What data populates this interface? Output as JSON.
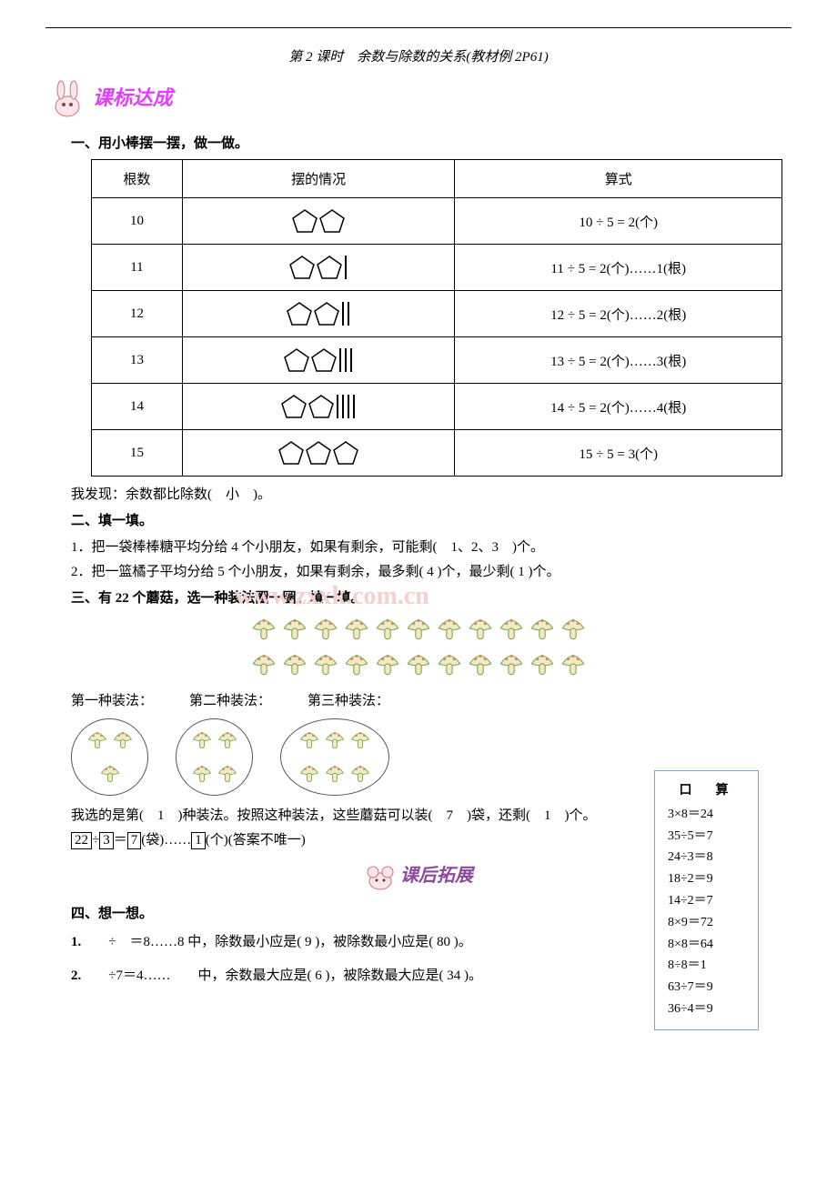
{
  "title": "第 2 课时　余数与除数的关系(教材例 2P61)",
  "banner1_text": "课标达成",
  "section1": {
    "heading": "一、用小棒摆一摆，做一做。",
    "headers": [
      "根数",
      "摆的情况",
      "算式"
    ],
    "rows": [
      {
        "n": "10",
        "sticks": 0,
        "pent": 2,
        "eq": "10 ÷ 5 = 2(个)"
      },
      {
        "n": "11",
        "sticks": 1,
        "pent": 2,
        "eq": "11 ÷ 5 = 2(个)……1(根)"
      },
      {
        "n": "12",
        "sticks": 2,
        "pent": 2,
        "eq": "12 ÷ 5 = 2(个)……2(根)"
      },
      {
        "n": "13",
        "sticks": 3,
        "pent": 2,
        "eq": "13 ÷ 5 = 2(个)……3(根)"
      },
      {
        "n": "14",
        "sticks": 4,
        "pent": 2,
        "eq": "14 ÷ 5 = 2(个)……4(根)"
      },
      {
        "n": "15",
        "sticks": 0,
        "pent": 3,
        "eq": "15 ÷ 5 = 3(个)"
      }
    ],
    "conclusion_pre": "我发现：余数都比除数(",
    "conclusion_ans": "　小　",
    "conclusion_post": ")。"
  },
  "section2": {
    "heading": "二、填一填。",
    "q1_pre": "1．把一袋棒棒糖平均分给 4 个小朋友，如果有剩余，可能剩(",
    "q1_ans": "　1、2、3　",
    "q1_post": ")个。",
    "q2_pre": "2．把一篮橘子平均分给 5 个小朋友，如果有剩余，最多剩(",
    "q2_ans1": " 4 ",
    "q2_mid": ")个，最少剩(",
    "q2_ans2": " 1 ",
    "q2_post": ")个。"
  },
  "section3": {
    "heading": "三、有 22 个蘑菇，选一种装法圈一圈，填一填。",
    "watermark": "www.zxxk.com.cn",
    "labels": [
      "第一种装法：",
      "第二种装法：",
      "第三种装法："
    ],
    "packs": [
      3,
      4,
      6
    ],
    "choice_pre": "我选的是第(",
    "choice_a1": "　1　",
    "choice_mid1": ")种装法。按照这种装法，这些蘑菇可以装(",
    "choice_a2": "　7　",
    "choice_mid2": ")袋，还剩(",
    "choice_a3": "　1　",
    "choice_post": ")个。",
    "eq_boxes": [
      "22",
      "3",
      "7",
      "1"
    ],
    "eq_text1": "÷",
    "eq_text2": "＝",
    "eq_text3": "(袋)……",
    "eq_text4": "(个)(答案不唯一)"
  },
  "banner2_text": "课后拓展",
  "section4": {
    "heading": "四、想一想。",
    "q1_pre": "1.　　÷　＝8……8 中，除数最小应是(",
    "q1_a1": " 9 ",
    "q1_mid": ")，被除数最小应是(",
    "q1_a2": " 80 ",
    "q1_post": ")。",
    "q2_pre": "2.　　÷7＝4……　　中，余数最大应是(",
    "q2_a1": " 6 ",
    "q2_mid": ")，被除数最大应是(",
    "q2_a2": " 34 ",
    "q2_post": ")。"
  },
  "sidebox": {
    "title": "口　算",
    "items": [
      "3×8＝24",
      "35÷5＝7",
      "24÷3＝8",
      "18÷2＝9",
      "14÷2＝7",
      "8×9＝72",
      "8×8＝64",
      "8÷8＝1",
      "63÷7＝9",
      "36÷4＝9"
    ]
  }
}
